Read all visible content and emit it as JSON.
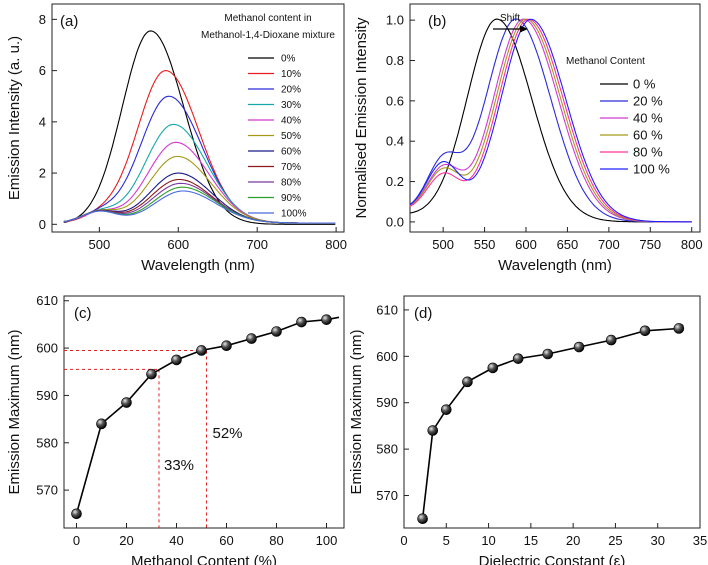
{
  "chart_data": [
    {
      "id": "a",
      "panel_label": "(a)",
      "type": "line",
      "xlabel": "Wavelength (nm)",
      "ylabel": "Emission Intensity (a. u.)",
      "xlim": [
        440,
        810
      ],
      "ylim": [
        -0.3,
        8.6
      ],
      "xticks": [
        500,
        600,
        700,
        800
      ],
      "yticks": [
        0,
        2,
        4,
        6,
        8
      ],
      "legend_title": [
        "Methanol content  in",
        "Methanol-1,4-Dioxane mixture"
      ],
      "series": [
        {
          "name": "0%",
          "color": "#000000",
          "peak": 565,
          "height": 7.55,
          "base": 0.0,
          "shoulder": 0.0
        },
        {
          "name": "10%",
          "color": "#e81c1c",
          "peak": 584,
          "height": 5.95,
          "base": 0.05,
          "shoulder": 0.25
        },
        {
          "name": "20%",
          "color": "#2b2bd9",
          "peak": 588,
          "height": 4.95,
          "base": 0.05,
          "shoulder": 0.35
        },
        {
          "name": "30%",
          "color": "#17a7a7",
          "peak": 594,
          "height": 3.85,
          "base": 0.05,
          "shoulder": 0.4
        },
        {
          "name": "40%",
          "color": "#d23ad2",
          "peak": 597,
          "height": 3.15,
          "base": 0.05,
          "shoulder": 0.4
        },
        {
          "name": "50%",
          "color": "#a39a1a",
          "peak": 599,
          "height": 2.6,
          "base": 0.05,
          "shoulder": 0.45
        },
        {
          "name": "60%",
          "color": "#1a1a8c",
          "peak": 600,
          "height": 1.95,
          "base": 0.05,
          "shoulder": 0.45
        },
        {
          "name": "70%",
          "color": "#8c1a1a",
          "peak": 601,
          "height": 1.7,
          "base": 0.05,
          "shoulder": 0.45
        },
        {
          "name": "80%",
          "color": "#7a3aa0",
          "peak": 603,
          "height": 1.55,
          "base": 0.05,
          "shoulder": 0.45
        },
        {
          "name": "90%",
          "color": "#2aa02a",
          "peak": 605,
          "height": 1.4,
          "base": 0.05,
          "shoulder": 0.45
        },
        {
          "name": "100%",
          "color": "#4a6ae0",
          "peak": 606,
          "height": 1.25,
          "base": 0.05,
          "shoulder": 0.45
        }
      ]
    },
    {
      "id": "b",
      "panel_label": "(b)",
      "type": "line",
      "xlabel": "Wavelength (nm)",
      "ylabel": "Normalised Emission Intensity",
      "xlim": [
        460,
        810
      ],
      "ylim": [
        -0.05,
        1.08
      ],
      "xticks": [
        500,
        550,
        600,
        650,
        700,
        750,
        800
      ],
      "yticks": [
        0.0,
        0.2,
        0.4,
        0.6,
        0.8,
        1.0
      ],
      "legend_title": "Methanol Content",
      "annotation": "Shift",
      "series": [
        {
          "name": "0 %",
          "color": "#000000",
          "peak": 565,
          "shoulder": 0.0,
          "base": 0.03
        },
        {
          "name": "20 %",
          "color": "#2b2bd9",
          "peak": 588,
          "shoulder": 0.26,
          "base": 0.05
        },
        {
          "name": "40 %",
          "color": "#d23ad2",
          "peak": 597,
          "shoulder": 0.23,
          "base": 0.05
        },
        {
          "name": "60 %",
          "color": "#a39a1a",
          "peak": 600,
          "shoulder": 0.22,
          "base": 0.05
        },
        {
          "name": "80 %",
          "color": "#ff3399",
          "peak": 603,
          "shoulder": 0.2,
          "base": 0.05
        },
        {
          "name": "100 %",
          "color": "#2020ff",
          "peak": 606,
          "shoulder": 0.26,
          "base": 0.05
        }
      ]
    },
    {
      "id": "c",
      "panel_label": "(c)",
      "type": "line",
      "xlabel": "Methanol Content (%)",
      "ylabel": "Emission Maximum (nm)",
      "xlim": [
        -5,
        107
      ],
      "ylim": [
        562,
        611
      ],
      "xticks": [
        0,
        20,
        40,
        60,
        80,
        100
      ],
      "yticks": [
        570,
        580,
        590,
        600,
        610
      ],
      "x": [
        0,
        10,
        20,
        30,
        40,
        50,
        60,
        70,
        80,
        90,
        100
      ],
      "y": [
        565,
        584,
        588.5,
        594.5,
        597.5,
        599.5,
        600.5,
        602,
        603.5,
        605.5,
        606
      ],
      "fit_end": [
        105,
        606.5
      ],
      "annotations": [
        {
          "text": "33%",
          "x": 33,
          "y": 595.5
        },
        {
          "text": "52%",
          "x": 52,
          "y": 599.5
        }
      ]
    },
    {
      "id": "d",
      "panel_label": "(d)",
      "type": "line",
      "xlabel": "Dielectric Constant (ε)",
      "ylabel": "Emission Maximum (nm)",
      "xlim": [
        0,
        35
      ],
      "ylim": [
        563,
        613
      ],
      "xticks": [
        0,
        5,
        10,
        15,
        20,
        25,
        30,
        35
      ],
      "yticks": [
        570,
        580,
        590,
        600,
        610
      ],
      "x": [
        2.2,
        3.4,
        5.0,
        7.5,
        10.5,
        13.5,
        17.0,
        20.7,
        24.5,
        28.5,
        32.5
      ],
      "y": [
        565,
        584,
        588.5,
        594.5,
        597.5,
        599.5,
        600.5,
        602,
        603.5,
        605.5,
        606
      ],
      "fit_end": [
        33,
        606.8
      ]
    }
  ]
}
